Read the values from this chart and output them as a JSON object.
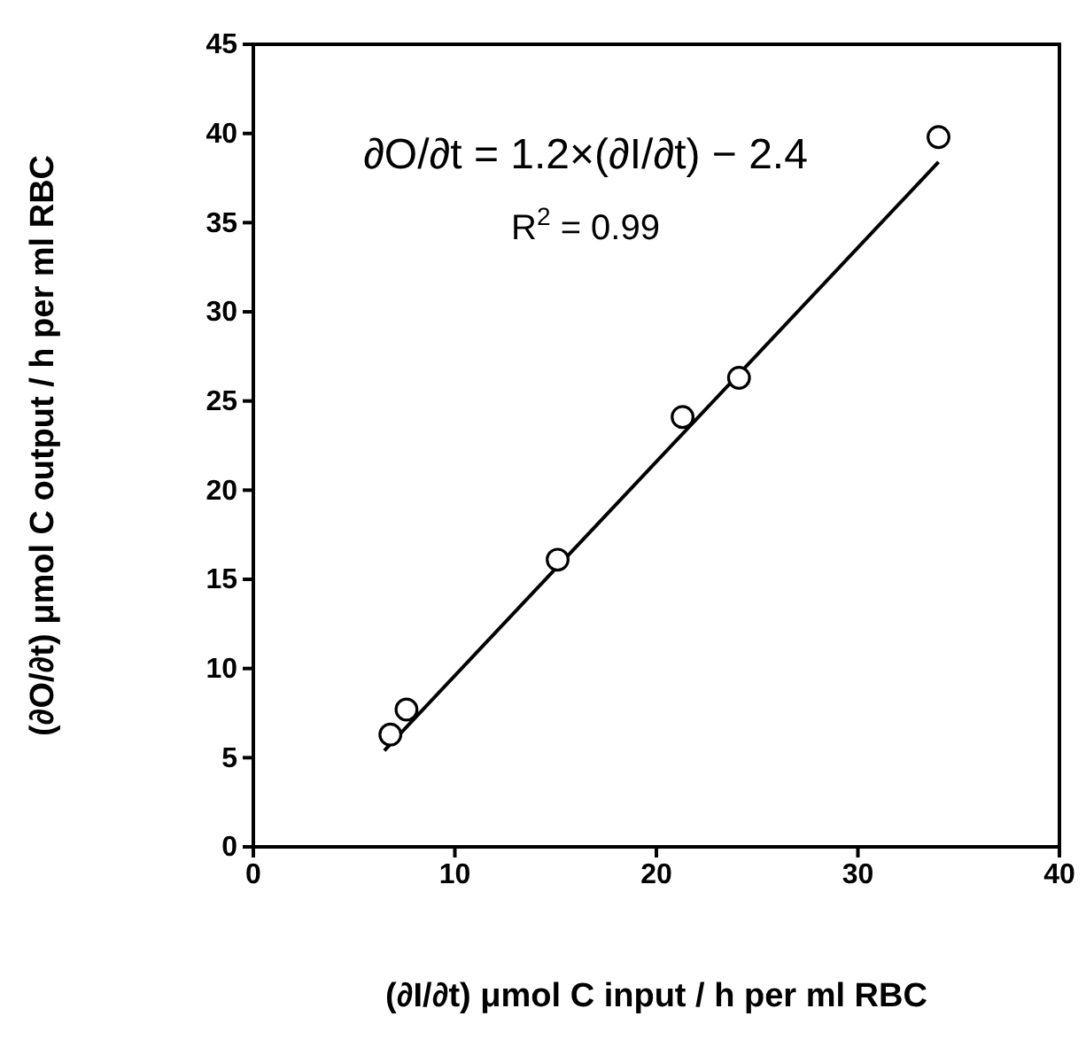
{
  "chart_data": {
    "type": "scatter",
    "xlabel": "(∂I/∂t) μmol C input / h per ml RBC",
    "ylabel": "(∂O/∂t) μmol C output / h per ml RBC",
    "annotations": [
      "∂O/∂t = 1.2×(∂I/∂t) − 2.4",
      "R$^{2}$ = 0.99"
    ],
    "xlim": [
      0,
      40
    ],
    "xticks": [
      0,
      10,
      20,
      30,
      40
    ],
    "ylim": [
      0,
      45
    ],
    "yticks": [
      0,
      5,
      10,
      15,
      20,
      25,
      30,
      35,
      40,
      45
    ],
    "grid": false,
    "series": [
      {
        "color": "#000000",
        "marker": "circle",
        "x": [
          6.8,
          7.6,
          15.1,
          21.3,
          24.1,
          34
        ],
        "values": [
          6.3,
          7.7,
          16.1,
          24.1,
          26.3,
          39.8
        ]
      },
      {
        "type": "line",
        "color": "#000000",
        "marker": "none",
        "line_style": "solid",
        "x": [
          6.5,
          34
        ],
        "values": [
          5.4,
          38.4
        ]
      }
    ]
  }
}
